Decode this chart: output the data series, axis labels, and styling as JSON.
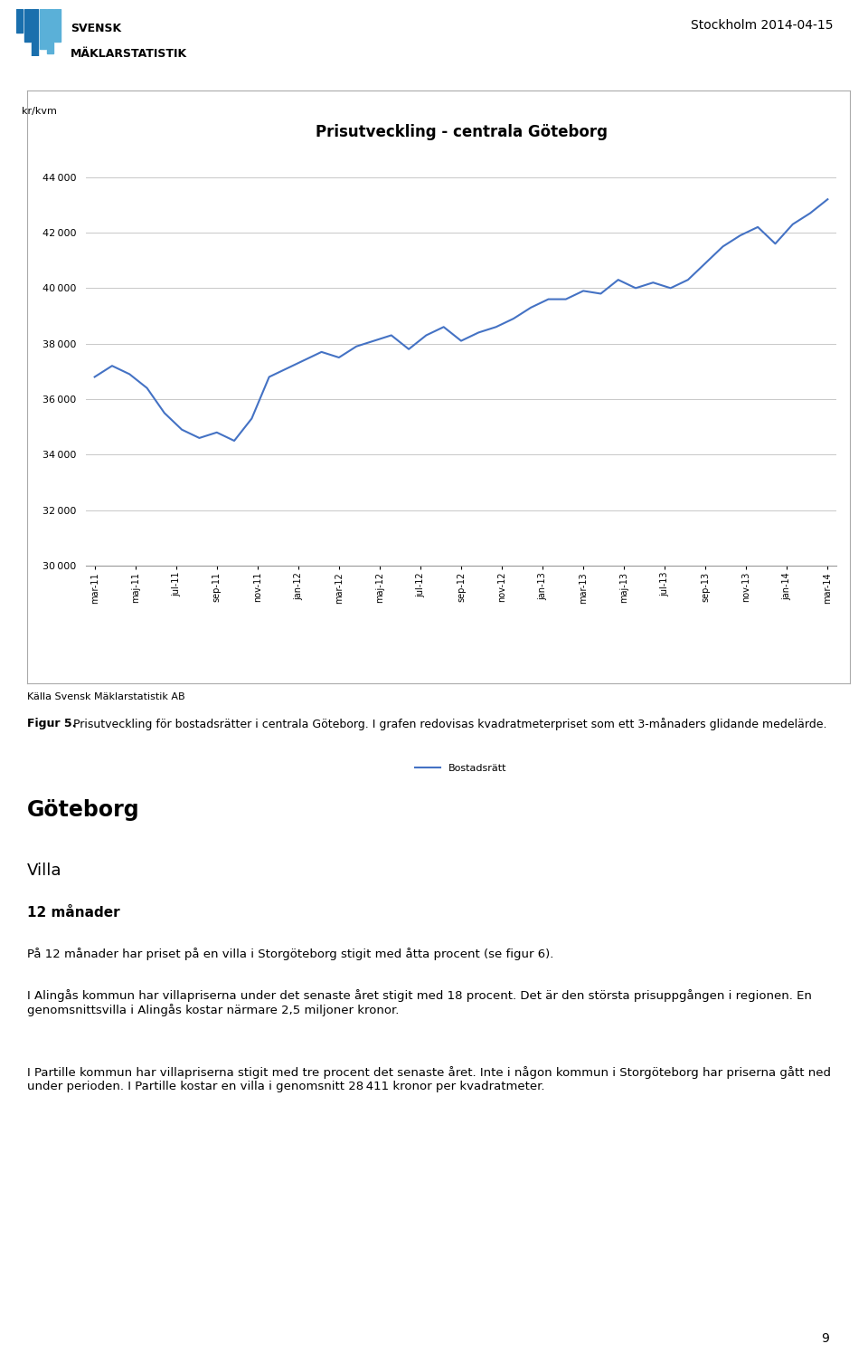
{
  "title": "Prisutveckling - centrala Göteborg",
  "ylabel": "kr/kvm",
  "line_color": "#4472C4",
  "legend_label": "Bostadsrätt",
  "source_text": "Källa Svensk Mäklarstatistik AB",
  "header_text": "Stockholm 2014-04-15",
  "fig_caption_bold": "Figur 5.",
  "fig_caption_normal": " Prisutveckling för bostadsrätter i centrala Göteborg. I grafen redovisas kvadratmeterpriset som ett 3-månaders glidande medelärde.",
  "section_heading": "Göteborg",
  "sub_heading1": "Villa",
  "sub_heading2": "12 månader",
  "para1": "På 12 månader har priset på en villa i Storgöteborg stigit med åtta procent (se figur 6).",
  "para2": "I Alingås kommun har villapriserna under det senaste året stigit med 18 procent. Det är den största prisuppgången i regionen. En genomsnittsvilla i Alingås kostar närmare 2,5 miljoner kronor.",
  "para3": "I Partille kommun har villapriserna stigit med tre procent det senaste året. Inte i någon kommun i Storgöteborg har priserna gått ned under perioden. I Partille kostar en villa i genomsnitt 28 411 kronor per kvadratmeter.",
  "page_number": "9",
  "ylim_min": 30000,
  "ylim_max": 45000,
  "yticks": [
    30000,
    32000,
    34000,
    36000,
    38000,
    40000,
    42000,
    44000
  ],
  "x_labels": [
    "mar-11",
    "maj-11",
    "jul-11",
    "sep-11",
    "nov-11",
    "jan-12",
    "mar-12",
    "maj-12",
    "jul-12",
    "sep-12",
    "nov-12",
    "jan-13",
    "mar-13",
    "maj-13",
    "jul-13",
    "sep-13",
    "nov-13",
    "jan-14",
    "mar-14"
  ],
  "y_values": [
    36800,
    37200,
    36900,
    36400,
    35500,
    34900,
    34600,
    34800,
    34500,
    35300,
    36800,
    37100,
    37400,
    37700,
    37500,
    37900,
    38100,
    38300,
    37800,
    38300,
    38600,
    38100,
    38400,
    38600,
    38900,
    39300,
    39600,
    39600,
    39900,
    39800,
    40300,
    40000,
    40200,
    40000,
    40300,
    40900,
    41500,
    41900,
    42200,
    41600,
    42300,
    42700,
    43200
  ]
}
